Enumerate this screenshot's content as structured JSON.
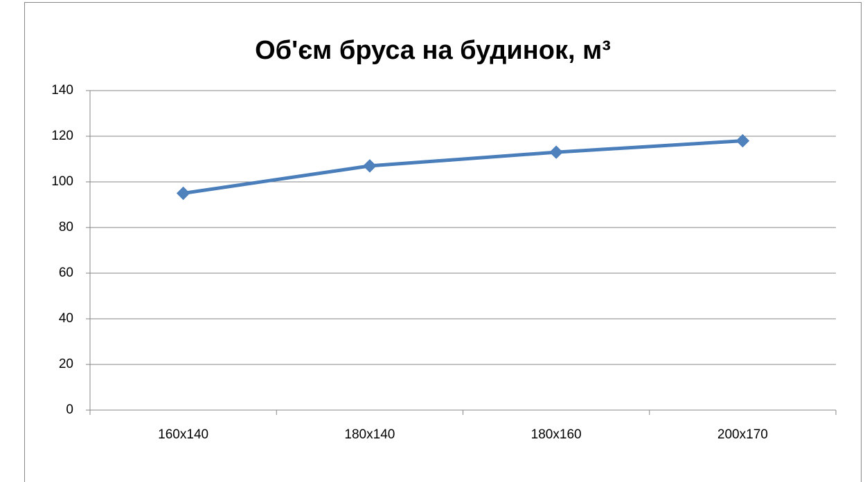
{
  "chart_data": {
    "type": "line",
    "title": "Об'єм бруса на будинок, м³",
    "categories": [
      "160x140",
      "180x140",
      "180x160",
      "200x170"
    ],
    "series": [
      {
        "name": "Об'єм бруса на будинок, м³",
        "color": "#4a7ebb",
        "values": [
          95,
          107,
          113,
          118
        ]
      }
    ],
    "ylim": [
      0,
      140
    ],
    "yticks": [
      0,
      20,
      40,
      60,
      80,
      100,
      120,
      140
    ],
    "grid": true
  }
}
